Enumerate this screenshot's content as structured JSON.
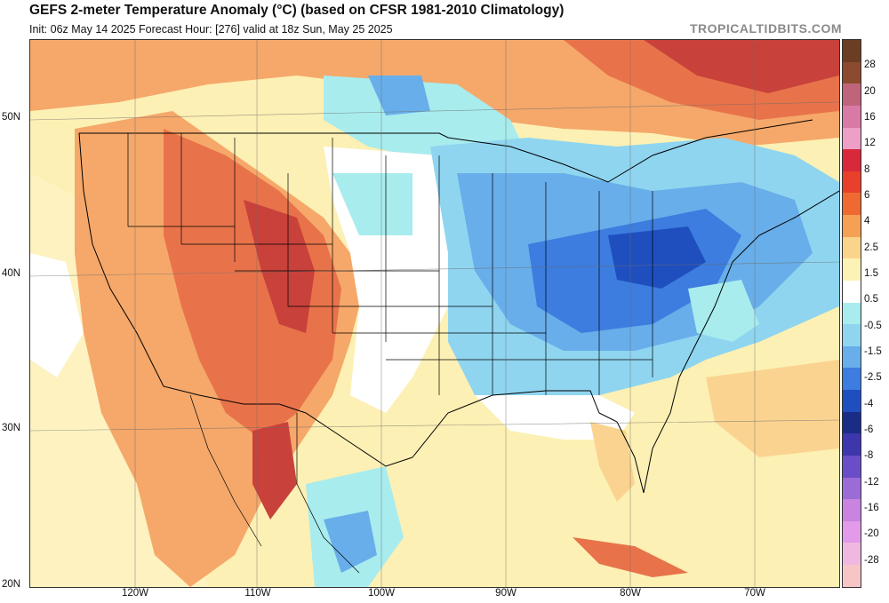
{
  "header": {
    "title": "GEFS 2-meter Temperature Anomaly (°C) (based on CFSR 1981-2010 Climatology)",
    "subtitle": "Init: 06z May 14 2025   Forecast Hour: [276]   valid at 18z Sun, May 25 2025",
    "brand": "TROPICALTIDBITS.COM"
  },
  "axes": {
    "lat_labels": [
      "50N",
      "40N",
      "30N",
      "20N"
    ],
    "lon_labels": [
      "120W",
      "110W",
      "100W",
      "90W",
      "80W",
      "70W"
    ]
  },
  "colorbar": {
    "labels": [
      "28",
      "20",
      "16",
      "12",
      "8",
      "6",
      "4",
      "2.5",
      "1.5",
      "0.5",
      "-0.5",
      "-1.5",
      "-2.5",
      "-4",
      "-6",
      "-8",
      "-12",
      "-16",
      "-20",
      "-28"
    ],
    "colors": [
      "#6b3e23",
      "#8c4a2e",
      "#c0647c",
      "#d97aa6",
      "#ee9fc8",
      "#d8283a",
      "#e8402b",
      "#ef6a32",
      "#f5a054",
      "#fbd48c",
      "#fdf2b6",
      "#ffffff",
      "#a8ecee",
      "#8fd5f0",
      "#68aeea",
      "#3c7ddf",
      "#1f4fbf",
      "#1a2d86",
      "#3d36ad",
      "#6a4ec8",
      "#9b6bd6",
      "#c884e0",
      "#e39ae8",
      "#f0b8e0",
      "#f6c6c6"
    ]
  },
  "map": {
    "colors": {
      "strong_warm": "#c8413a",
      "warm": "#e8734a",
      "mild_warm": "#f5a86a",
      "slight_warm": "#fbd390",
      "faint_warm": "#fdf0b4",
      "neutral": "#ffffff",
      "slight_cool": "#a8ecee",
      "cool": "#8fd5f0",
      "mild_cool": "#68aeea",
      "strong_cool": "#3c7ddf",
      "very_cool": "#1f4fbf",
      "ocean": "#fdf0b4",
      "border": "#000000"
    }
  }
}
